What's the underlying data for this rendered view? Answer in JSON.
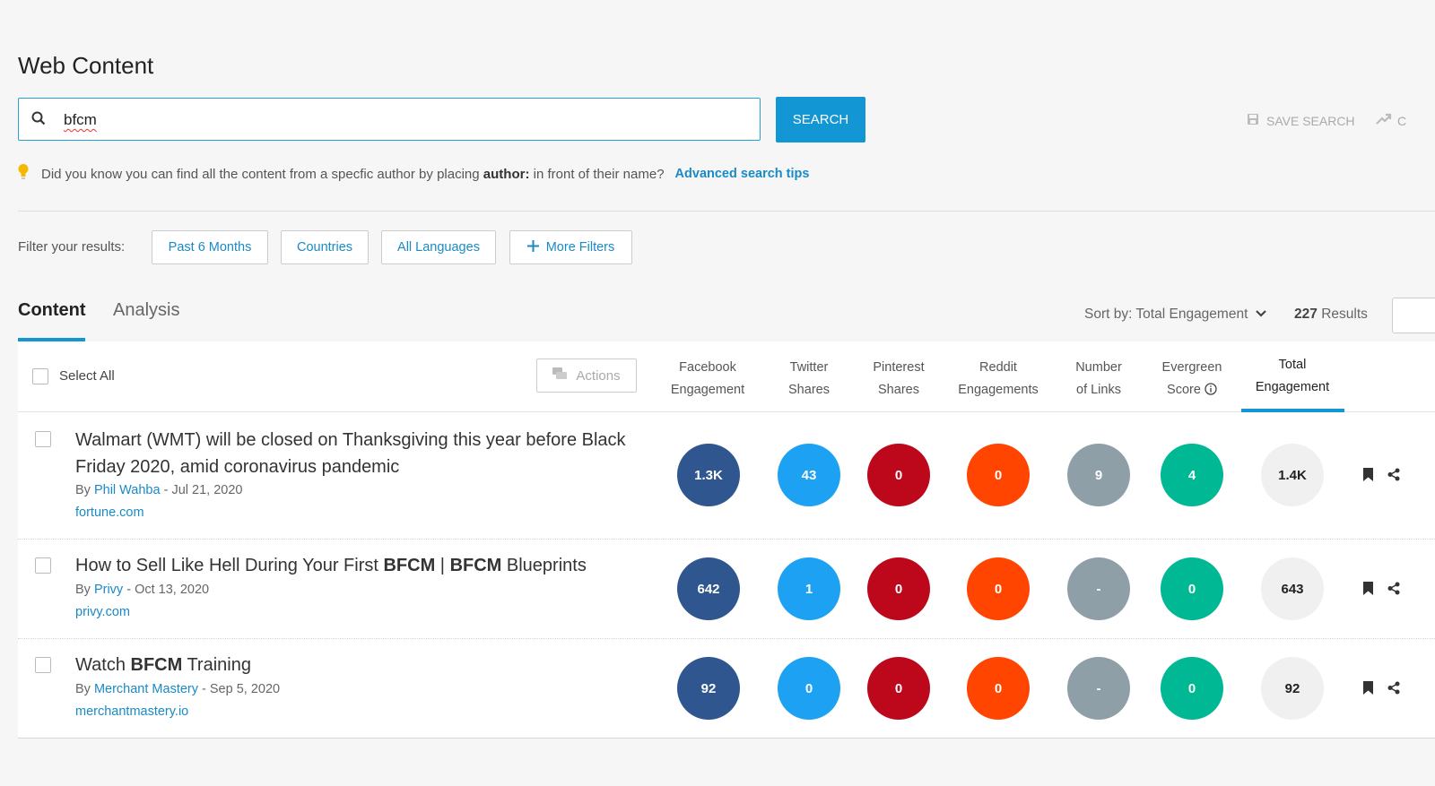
{
  "page": {
    "title": "Web Content"
  },
  "search": {
    "value": "bfcm",
    "button_label": "SEARCH",
    "save_label": "SAVE SEARCH",
    "extra_label": "C"
  },
  "tip": {
    "text_before": "Did you know you can find all the content from a specfic author by placing",
    "bold": "author:",
    "text_after": "in front of their name?",
    "link": "Advanced search tips"
  },
  "filters": {
    "label": "Filter your results:",
    "chips": [
      "Past 6 Months",
      "Countries",
      "All Languages",
      "More Filters"
    ]
  },
  "tabs": [
    "Content",
    "Analysis"
  ],
  "sort": {
    "label": "Sort by: Total Engagement",
    "results_count": "227",
    "results_label": "Results"
  },
  "table": {
    "select_all": "Select All",
    "actions": "Actions",
    "columns": [
      {
        "line1": "Facebook",
        "line2": "Engagement"
      },
      {
        "line1": "Twitter",
        "line2": "Shares"
      },
      {
        "line1": "Pinterest",
        "line2": "Shares"
      },
      {
        "line1": "Reddit",
        "line2": "Engagements"
      },
      {
        "line1": "Number",
        "line2": "of Links"
      },
      {
        "line1": "Evergreen",
        "line2": "Score"
      },
      {
        "line1": "Total",
        "line2": "Engagement"
      }
    ],
    "rows": [
      {
        "title": "Walmart (WMT) will be closed on Thanksgiving this year before Black Friday 2020, amid coronavirus pandemic",
        "by": "By",
        "author": "Phil Wahba",
        "date": "- Jul 21, 2020",
        "domain": "fortune.com",
        "facebook": "1.3K",
        "twitter": "43",
        "pinterest": "0",
        "reddit": "0",
        "links": "9",
        "evergreen": "4",
        "total": "1.4K"
      },
      {
        "title_parts": [
          "How to Sell Like Hell During Your First ",
          "BFCM",
          " | ",
          "BFCM",
          " Blueprints"
        ],
        "by": "By",
        "author": "Privy",
        "date": "- Oct 13, 2020",
        "domain": "privy.com",
        "facebook": "642",
        "twitter": "1",
        "pinterest": "0",
        "reddit": "0",
        "links": "-",
        "evergreen": "0",
        "total": "643"
      },
      {
        "title_parts": [
          "Watch ",
          "BFCM",
          " Training"
        ],
        "by": "By",
        "author": "Merchant Mastery",
        "date": "- Sep 5, 2020",
        "domain": "merchantmastery.io",
        "facebook": "92",
        "twitter": "0",
        "pinterest": "0",
        "reddit": "0",
        "links": "-",
        "evergreen": "0",
        "total": "92"
      }
    ]
  },
  "colors": {
    "accent": "#1296d4",
    "facebook": "#30568f",
    "twitter": "#1da1f2",
    "pinterest": "#bd081c",
    "reddit": "#ff4500",
    "links": "#8e9fa8",
    "evergreen": "#00b894",
    "total": "#f0f0f0"
  },
  "icons": [
    "search-icon",
    "lightbulb-icon",
    "save-icon",
    "trend-icon",
    "plus-icon",
    "chevron-down-icon",
    "actions-icon",
    "info-icon",
    "bookmark-icon",
    "share-icon"
  ]
}
